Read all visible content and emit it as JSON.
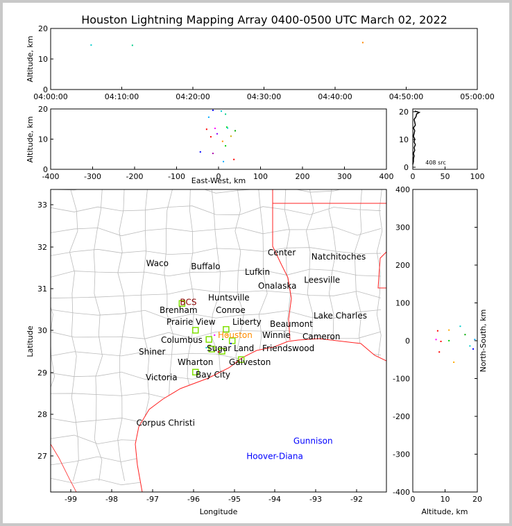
{
  "chart_data": {
    "type": "scatter",
    "title": "Houston Lightning Mapping Array 0400-0500 UTC March 02, 2022",
    "panels": {
      "time_alt": {
        "ylabel": "Altitude, km",
        "ylim": [
          0,
          20
        ],
        "yticks": [
          "0",
          "10",
          "20"
        ],
        "xticks": [
          "04:00:00",
          "04:10:00",
          "04:20:00",
          "04:30:00",
          "04:40:00",
          "04:50:00",
          "05:00:00"
        ],
        "points": [
          {
            "t_min": 5.6,
            "alt": 14.8,
            "color": "#00cccc"
          },
          {
            "t_min": 11.4,
            "alt": 14.7,
            "color": "#00cc88"
          },
          {
            "t_min": 43.8,
            "alt": 15.6,
            "color": "#ff8800"
          }
        ]
      },
      "ew_alt": {
        "xlabel": "East-West, km",
        "ylabel": "Altitude, km",
        "xlim": [
          -400,
          400
        ],
        "ylim": [
          0,
          20
        ],
        "xticks": [
          "-400",
          "-300",
          "-200",
          "-100",
          "0",
          "100",
          "200",
          "300",
          "400"
        ],
        "yticks": [
          "0",
          "10",
          "20"
        ],
        "points": [
          [
            -15,
            19.8,
            "#0000ff"
          ],
          [
            5,
            19.5,
            "#00cccc"
          ],
          [
            15,
            18.5,
            "#00cc88"
          ],
          [
            -25,
            17.5,
            "#00aaff"
          ],
          [
            18,
            14.2,
            "#00dd00"
          ],
          [
            -10,
            13.8,
            "#ff00ff"
          ],
          [
            -30,
            13.5,
            "#ff0000"
          ],
          [
            20,
            13.9,
            "#00cccc"
          ],
          [
            38,
            13,
            "#00aa00"
          ],
          [
            -5,
            12,
            "#8800ff"
          ],
          [
            28,
            11.2,
            "#ccaa00"
          ],
          [
            -20,
            11,
            "#ff0000"
          ],
          [
            8,
            9.5,
            "#ff8800"
          ],
          [
            15,
            8,
            "#00cc00"
          ],
          [
            -45,
            6,
            "#0000ff"
          ],
          [
            -15,
            5.5,
            "#aa00aa"
          ],
          [
            10,
            2.8,
            "#00aaff"
          ],
          [
            35,
            3.5,
            "#ff0000"
          ]
        ]
      },
      "alt_hist": {
        "xlim": [
          0,
          100
        ],
        "ylim": [
          0,
          20
        ],
        "xticks": [
          "0",
          "50",
          "100"
        ],
        "yticks": [
          "0",
          "10",
          "20"
        ],
        "annotation": "408 src",
        "profile": [
          [
            0,
            1
          ],
          [
            1,
            2
          ],
          [
            1,
            3
          ],
          [
            2,
            4
          ],
          [
            1,
            5
          ],
          [
            3,
            6
          ],
          [
            2,
            7
          ],
          [
            4,
            8
          ],
          [
            2,
            9
          ],
          [
            3,
            10
          ],
          [
            1,
            11
          ],
          [
            2,
            12
          ],
          [
            3,
            13
          ],
          [
            1,
            14
          ],
          [
            4,
            15
          ],
          [
            3,
            16
          ],
          [
            2,
            17
          ],
          [
            5,
            18
          ],
          [
            6,
            19
          ],
          [
            10,
            19.5
          ],
          [
            3,
            20
          ]
        ]
      },
      "map": {
        "xlabel": "Longitude",
        "ylabel": "Latitude",
        "xlim": [
          -99.5,
          -91.27
        ],
        "ylim": [
          26.14,
          33.36
        ],
        "xticks": [
          "-99",
          "-98",
          "-97",
          "-96",
          "-95",
          "-94",
          "-93",
          "-92"
        ],
        "yticks": [
          "27",
          "28",
          "29",
          "30",
          "31",
          "32",
          "33"
        ],
        "stations": [
          [
            -96.28,
            30.64
          ],
          [
            -95.95,
            30.0
          ],
          [
            -95.62,
            29.78
          ],
          [
            -95.2,
            30.02
          ],
          [
            -95.05,
            29.75
          ],
          [
            -95.55,
            29.55
          ],
          [
            -95.95,
            29.0
          ],
          [
            -94.83,
            29.3
          ],
          [
            -95.3,
            29.5
          ]
        ],
        "points": [
          [
            -95.3,
            29.8,
            "#00cc00"
          ],
          [
            -95.5,
            29.9,
            "#ff00ff"
          ],
          [
            -95.1,
            29.7,
            "#0000ff"
          ],
          [
            -95.7,
            29.6,
            "#00cccc"
          ],
          [
            -95.4,
            29.5,
            "#ff0000"
          ],
          [
            -95.2,
            29.9,
            "#ffaa00"
          ]
        ]
      },
      "ns_alt": {
        "xlabel": "Altitude, km",
        "ylabel": "North-South, km",
        "xlim": [
          0,
          20
        ],
        "ylim": [
          -400,
          400
        ],
        "xticks": [
          "0",
          "10",
          "20"
        ],
        "yticks": [
          "-400",
          "-300",
          "-200",
          "-100",
          "0",
          "100",
          "200",
          "300",
          "400"
        ],
        "points": [
          [
            7.5,
            28,
            "#ff0000"
          ],
          [
            11,
            30,
            "#ffaa00"
          ],
          [
            14.5,
            40,
            "#00cccc"
          ],
          [
            16,
            18,
            "#00aa00"
          ],
          [
            8,
            -28,
            "#ff0000"
          ],
          [
            12.5,
            -55,
            "#ffaa00"
          ],
          [
            18.5,
            -20,
            "#0000ff"
          ],
          [
            11,
            2,
            "#00cc00"
          ],
          [
            8.5,
            0,
            "#ff0000"
          ],
          [
            19,
            5,
            "#00aaff"
          ],
          [
            17.5,
            -12,
            "#00cccc"
          ],
          [
            7,
            5,
            "#ff00ff"
          ]
        ]
      }
    },
    "cities": [
      {
        "name": "Waco",
        "lon": -97.16,
        "lat": 31.6,
        "color": "#000000"
      },
      {
        "name": "Buffalo",
        "lon": -96.06,
        "lat": 31.52,
        "color": "#000000"
      },
      {
        "name": "Lufkin",
        "lon": -94.74,
        "lat": 31.39,
        "color": "#000000"
      },
      {
        "name": "Center",
        "lon": -94.18,
        "lat": 31.85,
        "color": "#000000"
      },
      {
        "name": "Natchitoches",
        "lon": -93.11,
        "lat": 31.75,
        "color": "#000000"
      },
      {
        "name": "Leesville",
        "lon": -93.29,
        "lat": 31.2,
        "color": "#000000"
      },
      {
        "name": "BCS",
        "lon": -96.33,
        "lat": 30.67,
        "color": "#8b0000"
      },
      {
        "name": "Huntsville",
        "lon": -95.55,
        "lat": 30.77,
        "color": "#000000"
      },
      {
        "name": "Onalaska",
        "lon": -95.11,
        "lat": 30.86,
        "color": "#000000"
      },
      {
        "name": "Conroe",
        "lon": -95.45,
        "lat": 30.37,
        "color": "#000000"
      },
      {
        "name": "Brenham",
        "lon": -96.4,
        "lat": 30.23,
        "color": "#000000"
      },
      {
        "name": "Prairie View",
        "lon": -95.98,
        "lat": 30.14,
        "color": "#000000"
      },
      {
        "name": "Liberty",
        "lon": -94.8,
        "lat": 30.13,
        "color": "#000000"
      },
      {
        "name": "Beaumont",
        "lon": -94.12,
        "lat": 30.14,
        "color": "#000000"
      },
      {
        "name": "Lake Charles",
        "lon": -93.22,
        "lat": 30.27,
        "color": "#000000"
      },
      {
        "name": "Winnie",
        "lon": -94.4,
        "lat": 29.88,
        "color": "#000000"
      },
      {
        "name": "Cameron",
        "lon": -93.33,
        "lat": 29.84,
        "color": "#000000"
      },
      {
        "name": "Columbus",
        "lon": -96.54,
        "lat": 29.79,
        "color": "#000000"
      },
      {
        "name": "Houston",
        "lon": -95.37,
        "lat": 29.83,
        "color": "#ff8c00"
      },
      {
        "name": "Sugar Land",
        "lon": -95.64,
        "lat": 29.65,
        "color": "#000000"
      },
      {
        "name": "Friendswood",
        "lon": -94.96,
        "lat": 29.56,
        "color": "#000000"
      },
      {
        "name": "Wharton",
        "lon": -96.11,
        "lat": 29.36,
        "color": "#000000"
      },
      {
        "name": "Galveston",
        "lon": -94.79,
        "lat": 29.35,
        "color": "#000000"
      },
      {
        "name": "Shiner",
        "lon": -97.16,
        "lat": 29.48,
        "color": "#000000"
      },
      {
        "name": "Bay City",
        "lon": -95.98,
        "lat": 29.03,
        "color": "#000000"
      },
      {
        "name": "Victoria",
        "lon": -96.98,
        "lat": 28.87,
        "color": "#000000"
      },
      {
        "name": "Corpus Christi",
        "lon": -97.4,
        "lat": 27.79,
        "color": "#000000"
      },
      {
        "name": "Gunnison",
        "lon": -93.55,
        "lat": 27.36,
        "color": "#0000ff"
      },
      {
        "name": "Hoover-Diana",
        "lon": -94.7,
        "lat": 26.99,
        "color": "#0000ff"
      }
    ]
  }
}
